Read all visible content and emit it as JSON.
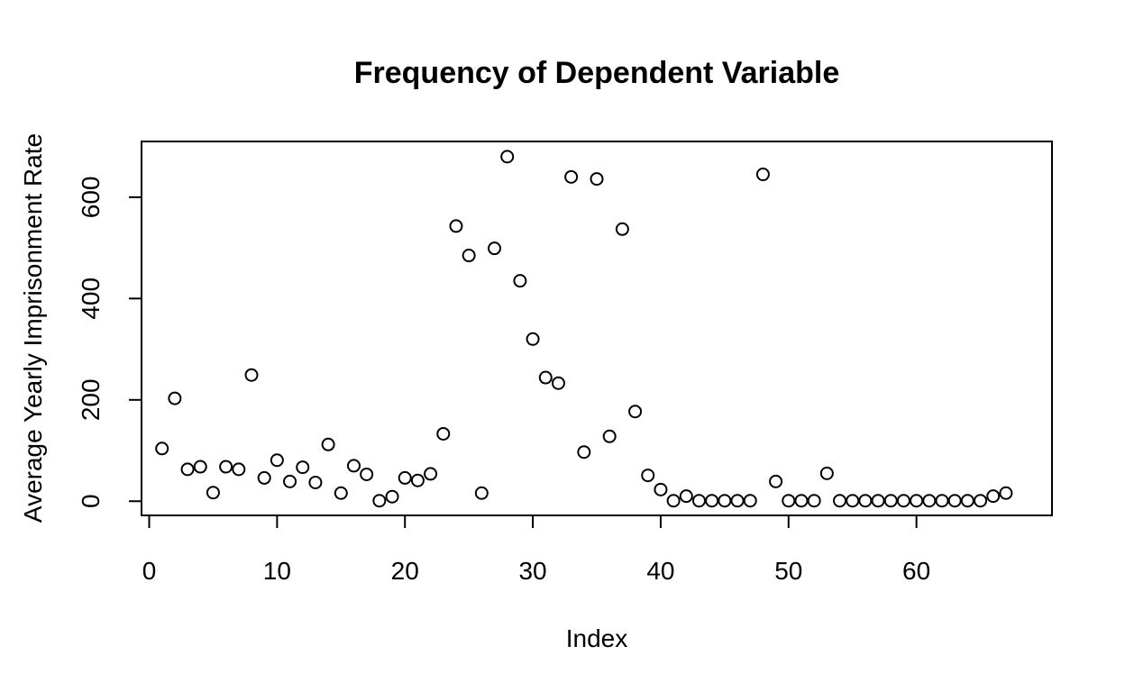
{
  "chart_data": {
    "type": "scatter",
    "title": "Frequency of Dependent Variable",
    "xlabel": "Index",
    "ylabel": "Average Yearly Imprisonment Rate",
    "xlim": [
      -0.6,
      70.6
    ],
    "ylim": [
      -28,
      710
    ],
    "xticks": [
      0,
      10,
      20,
      30,
      40,
      50,
      60
    ],
    "yticks": [
      0,
      200,
      400,
      600
    ],
    "grid": false,
    "legend": "none",
    "marker": "open-circle",
    "x": [
      1,
      2,
      3,
      4,
      5,
      6,
      7,
      8,
      9,
      10,
      11,
      12,
      13,
      14,
      15,
      16,
      17,
      18,
      19,
      20,
      21,
      22,
      23,
      24,
      25,
      26,
      27,
      28,
      29,
      30,
      31,
      32,
      33,
      34,
      35,
      36,
      37,
      38,
      39,
      40,
      41,
      42,
      43,
      44,
      45,
      46,
      47,
      48,
      49,
      50,
      51,
      52,
      53,
      54,
      55,
      56,
      57,
      58,
      59,
      60,
      61,
      62,
      63,
      64,
      65,
      66,
      67
    ],
    "y": [
      104,
      203,
      63,
      68,
      17,
      68,
      63,
      249,
      46,
      81,
      39,
      67,
      37,
      112,
      16,
      70,
      53,
      1,
      9,
      46,
      41,
      54,
      133,
      543,
      485,
      16,
      499,
      680,
      435,
      320,
      244,
      233,
      640,
      97,
      636,
      128,
      537,
      177,
      51,
      23,
      1,
      10,
      1,
      1,
      1,
      1,
      1,
      645,
      39,
      1,
      1,
      1,
      55,
      1,
      1,
      1,
      1,
      1,
      1,
      1,
      1,
      1,
      1,
      1,
      1,
      10,
      16
    ]
  }
}
